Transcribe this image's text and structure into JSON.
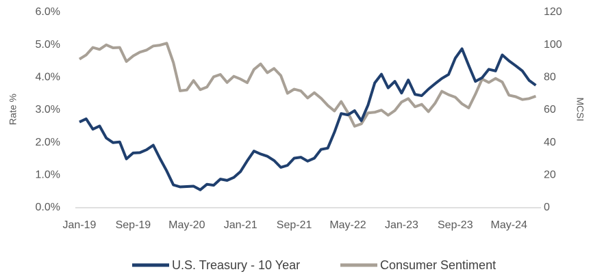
{
  "chart_data": {
    "type": "line",
    "categories": [
      "Jan-19",
      null,
      null,
      null,
      null,
      null,
      null,
      null,
      "Sep-19",
      null,
      null,
      null,
      null,
      null,
      null,
      null,
      "May-20",
      null,
      null,
      null,
      null,
      null,
      null,
      null,
      "Jan-21",
      null,
      null,
      null,
      null,
      null,
      null,
      null,
      "Sep-21",
      null,
      null,
      null,
      null,
      null,
      null,
      null,
      "May-22",
      null,
      null,
      null,
      null,
      null,
      null,
      null,
      "Jan-23",
      null,
      null,
      null,
      null,
      null,
      null,
      null,
      "Sep-23",
      null,
      null,
      null,
      null,
      null,
      null,
      null,
      "May-24",
      null,
      null,
      null,
      null
    ],
    "series": [
      {
        "name": "U.S. Treasury - 10 Year",
        "color": "#1f3f6e",
        "axis": "y",
        "values": [
          2.63,
          2.73,
          2.41,
          2.51,
          2.14,
          2.0,
          2.02,
          1.5,
          1.68,
          1.69,
          1.78,
          1.92,
          1.51,
          1.13,
          0.7,
          0.64,
          0.65,
          0.66,
          0.55,
          0.72,
          0.69,
          0.88,
          0.84,
          0.93,
          1.11,
          1.44,
          1.74,
          1.65,
          1.58,
          1.45,
          1.24,
          1.3,
          1.52,
          1.55,
          1.43,
          1.52,
          1.79,
          1.83,
          2.32,
          2.89,
          2.85,
          2.98,
          2.67,
          3.15,
          3.83,
          4.1,
          3.68,
          3.88,
          3.52,
          3.92,
          3.48,
          3.44,
          3.64,
          3.81,
          3.97,
          4.09,
          4.59,
          4.88,
          4.37,
          3.88,
          3.99,
          4.25,
          4.2,
          4.69,
          4.51,
          4.36,
          4.2,
          3.91,
          3.76
        ]
      },
      {
        "name": "Consumer Sentiment",
        "color": "#a8a096",
        "axis": "y2",
        "values": [
          91.2,
          93.8,
          98.4,
          97.2,
          100.0,
          98.2,
          98.4,
          89.8,
          93.2,
          95.5,
          96.8,
          99.3,
          99.8,
          101.0,
          89.1,
          71.8,
          72.3,
          78.1,
          72.5,
          74.1,
          80.4,
          81.8,
          76.9,
          80.7,
          79.0,
          76.8,
          84.9,
          88.3,
          82.9,
          85.5,
          81.2,
          70.3,
          72.8,
          71.7,
          67.4,
          70.6,
          67.2,
          62.8,
          59.4,
          65.2,
          58.4,
          50.0,
          51.5,
          58.2,
          58.6,
          59.9,
          56.8,
          59.7,
          64.9,
          67.0,
          62.0,
          63.5,
          59.0,
          64.2,
          71.5,
          69.4,
          67.9,
          63.8,
          61.3,
          69.7,
          79.0,
          76.9,
          79.4,
          77.2,
          69.1,
          68.2,
          66.4,
          67.0,
          68.5
        ]
      }
    ],
    "ylabel": "Rate %",
    "y2label": "MCSI",
    "ylim": [
      0,
      6
    ],
    "yticks": [
      {
        "value": 0,
        "label": "0.0%"
      },
      {
        "value": 1,
        "label": "1.0%"
      },
      {
        "value": 2,
        "label": "2.0%"
      },
      {
        "value": 3,
        "label": "3.0%"
      },
      {
        "value": 4,
        "label": "4.0%"
      },
      {
        "value": 5,
        "label": "5.0%"
      },
      {
        "value": 6,
        "label": "6.0%"
      }
    ],
    "y2lim": [
      0,
      120
    ],
    "y2ticks": [
      0,
      20,
      40,
      60,
      80,
      100,
      120
    ],
    "legend": "bottom"
  }
}
